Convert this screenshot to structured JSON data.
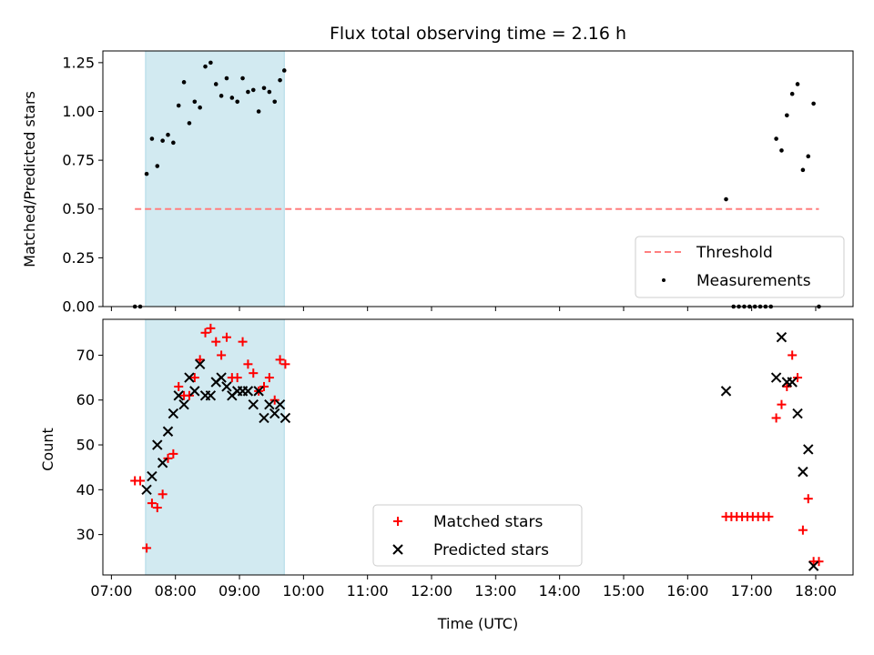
{
  "chart_data": [
    {
      "type": "scatter",
      "title": "Flux total observing time = 2.16 h",
      "xlabel": "",
      "ylabel": "Matched/Predicted stars",
      "ylim": [
        0,
        1.31
      ],
      "xlim": [
        "06:52",
        "18:35"
      ],
      "yticks": [
        0.0,
        0.25,
        0.5,
        0.75,
        1.0,
        1.25
      ],
      "ytick_labels": [
        "0.00",
        "0.25",
        "0.50",
        "0.75",
        "1.00",
        "1.25"
      ],
      "shaded_region": [
        "07:32",
        "09:42"
      ],
      "shaded_color": "#add8e6",
      "legend_position": "lower right",
      "threshold": {
        "name": "Threshold",
        "y": 0.5,
        "x_range": [
          "07:22",
          "18:03"
        ],
        "color": "#ff7f7f",
        "style": "dashed"
      },
      "series": [
        {
          "name": "Measurements",
          "color": "#000000",
          "marker": "dot",
          "points": [
            [
              "07:22",
              0.0
            ],
            [
              "07:27",
              0.0
            ],
            [
              "07:33",
              0.68
            ],
            [
              "07:38",
              0.86
            ],
            [
              "07:43",
              0.72
            ],
            [
              "07:48",
              0.85
            ],
            [
              "07:53",
              0.88
            ],
            [
              "07:58",
              0.84
            ],
            [
              "08:03",
              1.03
            ],
            [
              "08:08",
              1.15
            ],
            [
              "08:13",
              0.94
            ],
            [
              "08:18",
              1.05
            ],
            [
              "08:23",
              1.02
            ],
            [
              "08:28",
              1.23
            ],
            [
              "08:33",
              1.25
            ],
            [
              "08:38",
              1.14
            ],
            [
              "08:43",
              1.08
            ],
            [
              "08:48",
              1.17
            ],
            [
              "08:53",
              1.07
            ],
            [
              "08:58",
              1.05
            ],
            [
              "09:03",
              1.17
            ],
            [
              "09:08",
              1.1
            ],
            [
              "09:13",
              1.11
            ],
            [
              "09:18",
              1.0
            ],
            [
              "09:23",
              1.12
            ],
            [
              "09:28",
              1.1
            ],
            [
              "09:33",
              1.05
            ],
            [
              "09:38",
              1.16
            ],
            [
              "09:42",
              1.21
            ],
            [
              "16:36",
              0.55
            ],
            [
              "16:43",
              0.0
            ],
            [
              "16:48",
              0.0
            ],
            [
              "16:53",
              0.0
            ],
            [
              "16:58",
              0.0
            ],
            [
              "17:03",
              0.0
            ],
            [
              "17:08",
              0.0
            ],
            [
              "17:13",
              0.0
            ],
            [
              "17:18",
              0.0
            ],
            [
              "17:23",
              0.86
            ],
            [
              "17:28",
              0.8
            ],
            [
              "17:33",
              0.98
            ],
            [
              "17:38",
              1.09
            ],
            [
              "17:43",
              1.14
            ],
            [
              "17:48",
              0.7
            ],
            [
              "17:53",
              0.77
            ],
            [
              "17:58",
              1.04
            ],
            [
              "18:03",
              0.0
            ]
          ]
        }
      ]
    },
    {
      "type": "scatter",
      "title": "",
      "xlabel": "Time (UTC)",
      "ylabel": "Count",
      "ylim": [
        21,
        78
      ],
      "xlim": [
        "06:52",
        "18:35"
      ],
      "yticks": [
        30,
        40,
        50,
        60,
        70
      ],
      "ytick_labels": [
        "30",
        "40",
        "50",
        "60",
        "70"
      ],
      "xticks": [
        "07:00",
        "08:00",
        "09:00",
        "10:00",
        "11:00",
        "12:00",
        "13:00",
        "14:00",
        "15:00",
        "16:00",
        "17:00",
        "18:00"
      ],
      "shaded_region": [
        "07:32",
        "09:42"
      ],
      "shaded_color": "#add8e6",
      "legend_position": "lower center",
      "series": [
        {
          "name": "Matched stars",
          "color": "#ff0000",
          "marker": "plus",
          "points": [
            [
              "07:22",
              42
            ],
            [
              "07:27",
              42
            ],
            [
              "07:33",
              27
            ],
            [
              "07:38",
              37
            ],
            [
              "07:43",
              36
            ],
            [
              "07:48",
              39
            ],
            [
              "07:53",
              47
            ],
            [
              "07:58",
              48
            ],
            [
              "08:03",
              63
            ],
            [
              "08:08",
              61
            ],
            [
              "08:13",
              61
            ],
            [
              "08:18",
              65
            ],
            [
              "08:23",
              69
            ],
            [
              "08:28",
              75
            ],
            [
              "08:33",
              76
            ],
            [
              "08:38",
              73
            ],
            [
              "08:43",
              70
            ],
            [
              "08:48",
              74
            ],
            [
              "08:53",
              65
            ],
            [
              "08:58",
              65
            ],
            [
              "09:03",
              73
            ],
            [
              "09:08",
              68
            ],
            [
              "09:13",
              66
            ],
            [
              "09:18",
              62
            ],
            [
              "09:23",
              63
            ],
            [
              "09:28",
              65
            ],
            [
              "09:33",
              60
            ],
            [
              "09:38",
              69
            ],
            [
              "09:43",
              68
            ],
            [
              "16:36",
              34
            ],
            [
              "16:41",
              34
            ],
            [
              "16:46",
              34
            ],
            [
              "16:51",
              34
            ],
            [
              "16:56",
              34
            ],
            [
              "17:01",
              34
            ],
            [
              "17:06",
              34
            ],
            [
              "17:11",
              34
            ],
            [
              "17:16",
              34
            ],
            [
              "17:23",
              56
            ],
            [
              "17:28",
              59
            ],
            [
              "17:33",
              63
            ],
            [
              "17:38",
              70
            ],
            [
              "17:43",
              65
            ],
            [
              "17:48",
              31
            ],
            [
              "17:53",
              38
            ],
            [
              "17:58",
              24
            ],
            [
              "18:03",
              24
            ]
          ]
        },
        {
          "name": "Predicted stars",
          "color": "#000000",
          "marker": "x",
          "points": [
            [
              "07:33",
              40
            ],
            [
              "07:38",
              43
            ],
            [
              "07:43",
              50
            ],
            [
              "07:48",
              46
            ],
            [
              "07:53",
              53
            ],
            [
              "07:58",
              57
            ],
            [
              "08:03",
              61
            ],
            [
              "08:08",
              59
            ],
            [
              "08:13",
              65
            ],
            [
              "08:18",
              62
            ],
            [
              "08:23",
              68
            ],
            [
              "08:28",
              61
            ],
            [
              "08:33",
              61
            ],
            [
              "08:38",
              64
            ],
            [
              "08:43",
              65
            ],
            [
              "08:48",
              63
            ],
            [
              "08:53",
              61
            ],
            [
              "08:58",
              62
            ],
            [
              "09:03",
              62
            ],
            [
              "09:08",
              62
            ],
            [
              "09:13",
              59
            ],
            [
              "09:18",
              62
            ],
            [
              "09:23",
              56
            ],
            [
              "09:28",
              59
            ],
            [
              "09:33",
              57
            ],
            [
              "09:38",
              59
            ],
            [
              "09:43",
              56
            ],
            [
              "16:36",
              62
            ],
            [
              "17:23",
              65
            ],
            [
              "17:28",
              74
            ],
            [
              "17:33",
              64
            ],
            [
              "17:38",
              64
            ],
            [
              "17:43",
              57
            ],
            [
              "17:48",
              44
            ],
            [
              "17:53",
              49
            ],
            [
              "17:58",
              23
            ]
          ]
        }
      ]
    }
  ]
}
